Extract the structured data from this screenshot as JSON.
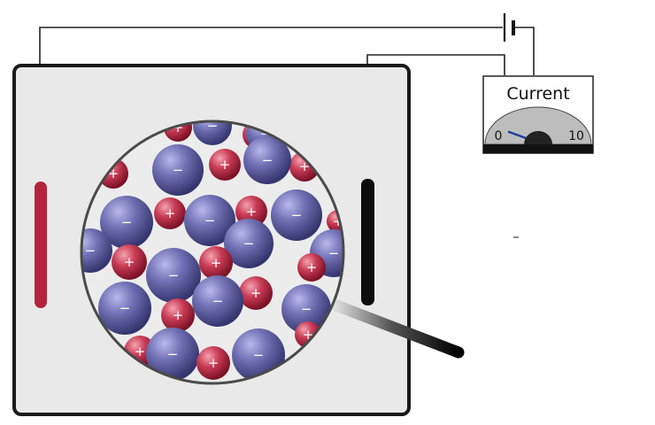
{
  "ammeter": {
    "title": "Current",
    "scale_min": "0",
    "scale_max": "10",
    "reading": 0
  },
  "colors": {
    "container_fill": "#e9e9e9",
    "container_stroke": "#1a1a1a",
    "positive_electrode": "#b5243e",
    "negative_electrode": "#0d0d0d",
    "anion": "#5d5d9e",
    "cation": "#c23a52",
    "needle": "#1f3f9e"
  },
  "ions": {
    "anion_symbol": "−",
    "cation_symbol": "+"
  }
}
